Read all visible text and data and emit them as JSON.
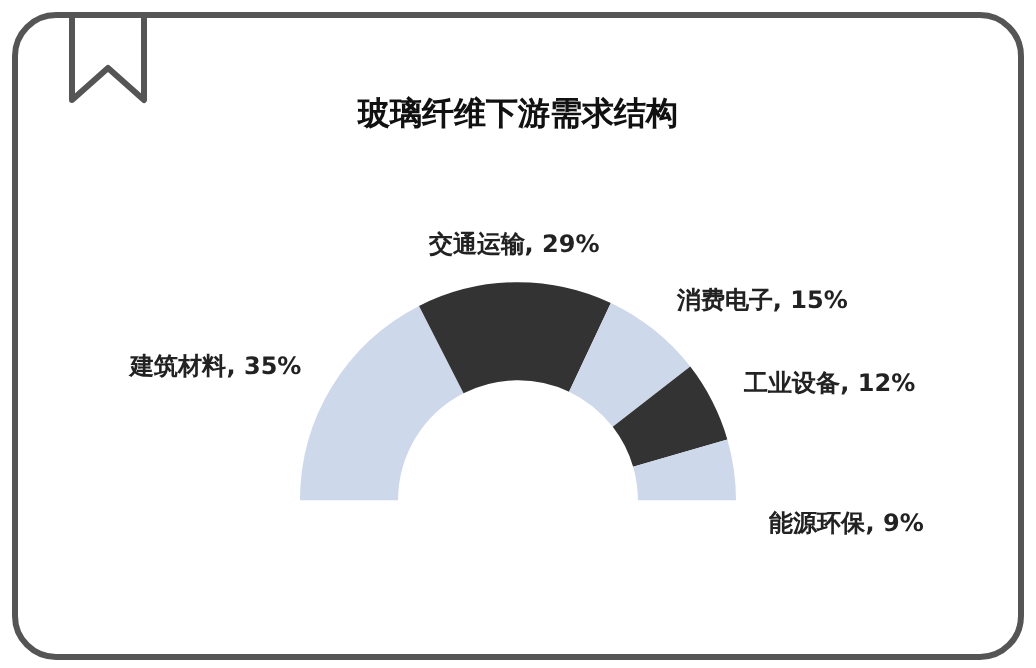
{
  "chart_data": {
    "type": "donut",
    "title": "玻璃纤维下游需求结构",
    "categories": [
      "建筑材料",
      "交通运输",
      "消费电子",
      "工业设备",
      "能源环保"
    ],
    "values": [
      35,
      29,
      15,
      12,
      9
    ],
    "value_labels": [
      "35%",
      "29%",
      "15%",
      "12%",
      "9%"
    ],
    "colors": [
      "#cdd8ea",
      "#333333",
      "#cdd8ea",
      "#333333",
      "#cdd8ea"
    ],
    "legend": false
  }
}
